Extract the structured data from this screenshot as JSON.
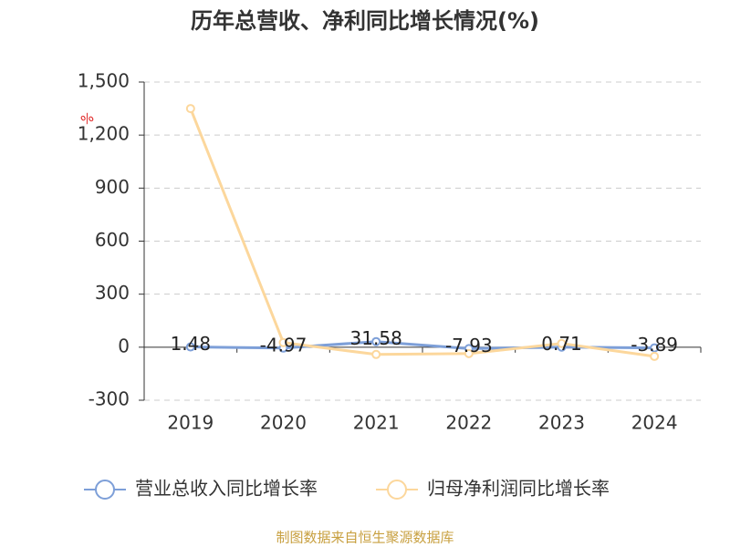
{
  "chart_data": {
    "type": "line",
    "title": "历年总营收、净利同比增长情况(%)",
    "unit": "%",
    "categories": [
      "2019",
      "2020",
      "2021",
      "2022",
      "2023",
      "2024"
    ],
    "series": [
      {
        "name": "营业总收入同比增长率",
        "color": "#7d9fd8",
        "values": [
          1.48,
          -4.97,
          31.58,
          -7.93,
          0.71,
          -3.89
        ],
        "show_labels": true
      },
      {
        "name": "归母净利润同比增长率",
        "color": "#fcd79c",
        "values": [
          1350,
          26,
          -41,
          -36,
          21,
          -52
        ],
        "show_labels": false
      }
    ],
    "ylim": [
      -300,
      1500
    ],
    "yticks": [
      -300,
      0,
      300,
      600,
      900,
      {
        "value": 1200,
        "label": "1,200"
      },
      {
        "value": 1500,
        "label": "1,500"
      }
    ],
    "grid": true,
    "legend": "bottom",
    "source": "制图数据来自恒生聚源数据库"
  }
}
